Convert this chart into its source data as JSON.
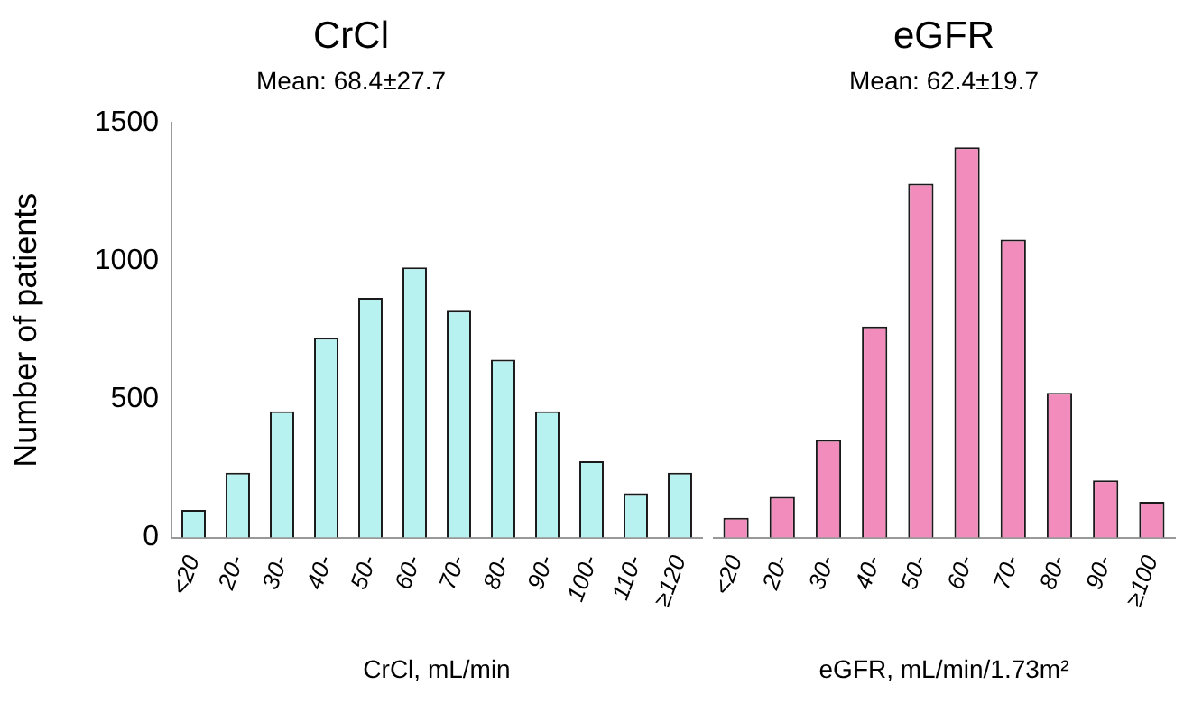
{
  "chart_data": [
    {
      "type": "bar",
      "title": "CrCl",
      "subtitle": "Mean: 68.4±27.7",
      "xlabel": "CrCl, mL/min",
      "ylabel": "Number of patients",
      "categories": [
        "<20",
        "20-",
        "30-",
        "40-",
        "50-",
        "60-",
        "70-",
        "80-",
        "90-",
        "100-",
        "110-",
        "≥120"
      ],
      "values": [
        100,
        234,
        456,
        722,
        867,
        977,
        820,
        643,
        456,
        276,
        160,
        234
      ],
      "color": "#b8f2f0",
      "ylim": [
        0,
        1500
      ],
      "yticks": [
        0,
        500,
        1000,
        1500
      ],
      "grid": false,
      "legend": false
    },
    {
      "type": "bar",
      "title": "eGFR",
      "subtitle": "Mean: 62.4±19.7",
      "xlabel": "eGFR, mL/min/1.73m²",
      "categories": [
        "<20",
        "20-",
        "30-",
        "40-",
        "50-",
        "60-",
        "70-",
        "80-",
        "90-",
        "≥100"
      ],
      "values": [
        71,
        147,
        353,
        763,
        1280,
        1411,
        1077,
        523,
        207,
        129
      ],
      "color": "#f28cbd",
      "ylim": [
        0,
        1500
      ],
      "yticks": [
        0,
        500,
        1000,
        1500
      ],
      "tick_labels": "x",
      "grid": false,
      "legend": false
    }
  ]
}
